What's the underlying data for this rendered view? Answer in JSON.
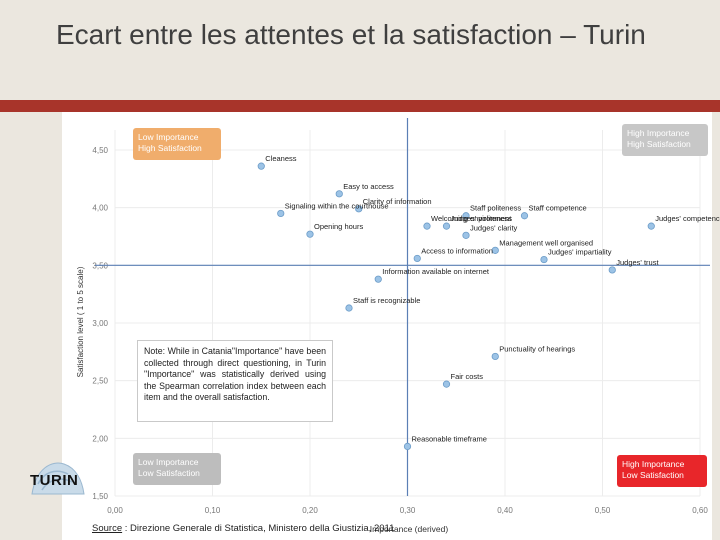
{
  "slide": {
    "title": "Ecart entre les attentes et la satisfaction – Turin",
    "logo_text": "TURIN",
    "source_label": "Source",
    "source_text": " : Direzione Generale di Statistica, Ministero della Giustizia, 2011",
    "note": "Note: While in Catania\"Importance\" have been collected through direct questioning, in Turin \"Importance\" was statistically derived using the Spearman correlation index between each item and the overall satisfaction."
  },
  "colors": {
    "header_bg": "#ebe7df",
    "accent_bar": "#a8342a",
    "point": "#9cc3e6",
    "point_stroke": "#6c9cc8",
    "quadrant_line": "#5b7fb5",
    "low_high_box": "#f0ad6c",
    "high_high_box": "#c7c7c7",
    "low_low_box": "#bdbdbd",
    "high_low_box": "#e8262a"
  },
  "chart_data": {
    "type": "scatter",
    "xlabel": "Importance (derived)",
    "ylabel": "Satisfaction level ( 1 to 5 scale)",
    "xlim": [
      0,
      0.6
    ],
    "ylim": [
      1.5,
      4.75
    ],
    "xticks": [
      "0,00",
      "0,10",
      "0,20",
      "0,30",
      "0,40",
      "0,50",
      "0,60"
    ],
    "yticks": [
      "1,50",
      "2,00",
      "2,50",
      "3,00",
      "3,50",
      "4,00",
      "4,50"
    ],
    "xtick_values": [
      0,
      0.1,
      0.2,
      0.3,
      0.4,
      0.5,
      0.6
    ],
    "ytick_values": [
      1.5,
      2.0,
      2.5,
      3.0,
      3.5,
      4.0,
      4.5
    ],
    "divider": {
      "x": 0.3,
      "y": 3.5
    },
    "quadrants": [
      {
        "label": "Low Importance\nHigh Satisfaction",
        "position": "top-left",
        "color": "#f0ad6c"
      },
      {
        "label": "High Importance\nHigh Satisfaction",
        "position": "top-right",
        "color": "#c7c7c7"
      },
      {
        "label": "Low Importance\nLow Satisfaction",
        "position": "bottom-left",
        "color": "#bdbdbd"
      },
      {
        "label": "High Importance\nLow Satisfaction",
        "position": "bottom-right",
        "color": "#e8262a"
      }
    ],
    "points": [
      {
        "label": "Cleaness",
        "x": 0.15,
        "y": 4.36
      },
      {
        "label": "Easy to access",
        "x": 0.23,
        "y": 4.12
      },
      {
        "label": "Clarity of information",
        "x": 0.25,
        "y": 3.99
      },
      {
        "label": "Signaling within the courthouse",
        "x": 0.17,
        "y": 3.95
      },
      {
        "label": "Staff politeness",
        "x": 0.36,
        "y": 3.93
      },
      {
        "label": "Staff competence",
        "x": 0.42,
        "y": 3.93
      },
      {
        "label": "Welcoming environment",
        "x": 0.32,
        "y": 3.84
      },
      {
        "label": "Judges' politeness",
        "x": 0.34,
        "y": 3.84
      },
      {
        "label": "Judges' competence",
        "x": 0.55,
        "y": 3.84
      },
      {
        "label": "Judges' clarity",
        "x": 0.36,
        "y": 3.76
      },
      {
        "label": "Opening hours",
        "x": 0.2,
        "y": 3.77
      },
      {
        "label": "Management well organised",
        "x": 0.39,
        "y": 3.63
      },
      {
        "label": "Access to information",
        "x": 0.31,
        "y": 3.56
      },
      {
        "label": "Judges' impartiality",
        "x": 0.44,
        "y": 3.55
      },
      {
        "label": "Judges' trust",
        "x": 0.51,
        "y": 3.46
      },
      {
        "label": "Information available on internet",
        "x": 0.27,
        "y": 3.38
      },
      {
        "label": "Staff is recognizable",
        "x": 0.24,
        "y": 3.13
      },
      {
        "label": "Punctuality of hearings",
        "x": 0.39,
        "y": 2.71
      },
      {
        "label": "Fair costs",
        "x": 0.34,
        "y": 2.47
      },
      {
        "label": "Reasonable timeframe",
        "x": 0.3,
        "y": 1.93
      }
    ]
  }
}
